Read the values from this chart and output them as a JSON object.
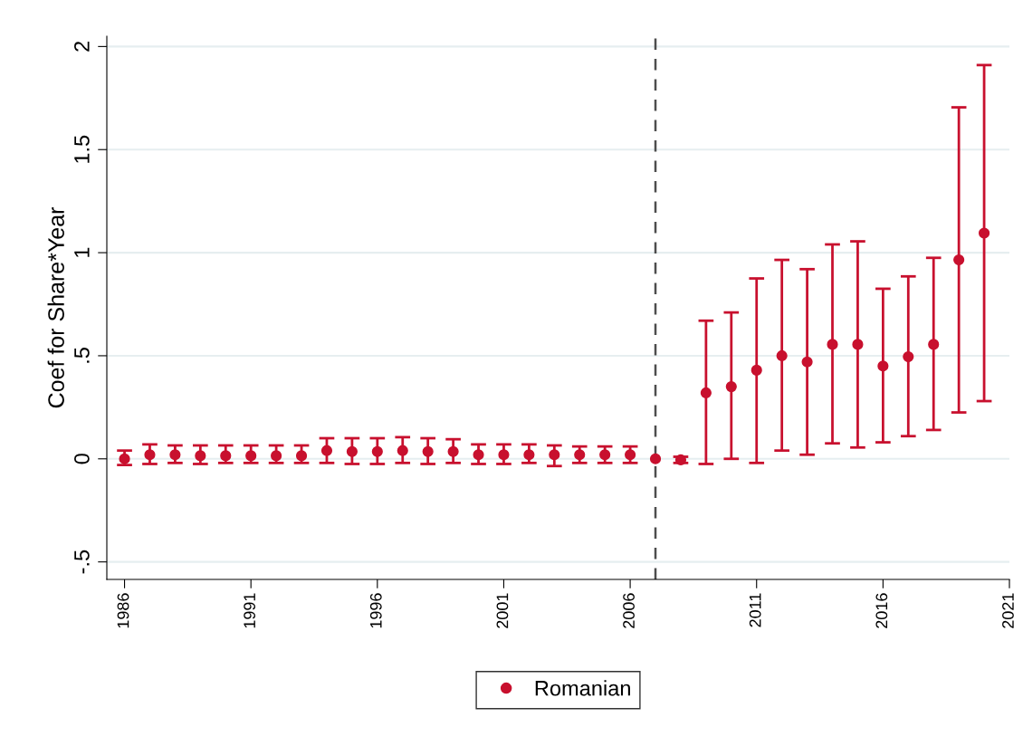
{
  "chart_data": {
    "type": "scatter",
    "ylabel": "Coef for Share*Year",
    "xlim": [
      1985.3,
      2021
    ],
    "xticks": [
      1986,
      1991,
      1996,
      2001,
      2006,
      2011,
      2016,
      2021
    ],
    "ylim": [
      -0.585,
      2.05
    ],
    "yticks": [
      {
        "value": -0.5,
        "label": "-.5"
      },
      0,
      {
        "value": 0.5,
        "label": ".5"
      },
      1,
      1.5,
      2
    ],
    "grid": "y",
    "legend": "bottom",
    "marker": "circle",
    "ref_lines": [
      {
        "axis": "x",
        "value": 2007,
        "color": "#4d4d4d",
        "line_style": "dashed"
      }
    ],
    "series": [
      {
        "color": "#c8102e",
        "x": [
          1986,
          1987,
          1988,
          1989,
          1990,
          1991,
          1992,
          1993,
          1994,
          1995,
          1996,
          1997,
          1998,
          1999,
          2000,
          2001,
          2002
        ],
        "values": [
          0,
          0.02,
          0.02,
          0.015,
          0.015,
          0.015,
          0.015,
          0.015,
          0.04,
          0.035,
          0.035,
          0.04,
          0.035,
          0.035,
          0.02,
          0.02,
          0.02
        ],
        "errors": [
          [
            -0.03,
            0.04
          ],
          [
            -0.025,
            0.07
          ],
          [
            -0.02,
            0.065
          ],
          [
            -0.025,
            0.065
          ],
          [
            -0.02,
            0.065
          ],
          [
            -0.02,
            0.065
          ],
          [
            -0.02,
            0.065
          ],
          [
            -0.02,
            0.065
          ],
          [
            -0.02,
            0.1
          ],
          [
            -0.025,
            0.1
          ],
          [
            -0.025,
            0.1
          ],
          [
            -0.02,
            0.105
          ],
          [
            -0.025,
            0.1
          ],
          [
            -0.02,
            0.095
          ],
          [
            -0.025,
            0.07
          ],
          [
            -0.025,
            0.07
          ],
          [
            -0.02,
            0.07
          ]
        ]
      },
      {
        "name": "Romanian",
        "color": "#c8102e",
        "x": [
          2003,
          2004,
          2005,
          2006,
          2007,
          2008,
          2009,
          2010,
          2011,
          2012,
          2013,
          2014,
          2015,
          2016,
          2017,
          2018,
          2019,
          2020
        ],
        "values": [
          0.02,
          0.02,
          0.02,
          0.02,
          0,
          -0.005,
          0.32,
          0.35,
          0.43,
          0.5,
          0.47,
          0.555,
          0.555,
          0.45,
          0.495,
          0.555,
          0.965,
          1.095
        ],
        "errors": [
          [
            -0.035,
            0.065
          ],
          [
            -0.02,
            0.06
          ],
          [
            -0.02,
            0.06
          ],
          [
            -0.02,
            0.06
          ],
          null,
          [
            -0.02,
            0.01
          ],
          [
            -0.025,
            0.67
          ],
          [
            0,
            0.71
          ],
          [
            -0.02,
            0.875
          ],
          [
            0.04,
            0.965
          ],
          [
            0.02,
            0.92
          ],
          [
            0.075,
            1.04
          ],
          [
            0.055,
            1.055
          ],
          [
            0.08,
            0.825
          ],
          [
            0.11,
            0.885
          ],
          [
            0.14,
            0.975
          ],
          [
            0.225,
            1.705
          ],
          [
            0.28,
            1.91
          ]
        ]
      }
    ]
  }
}
